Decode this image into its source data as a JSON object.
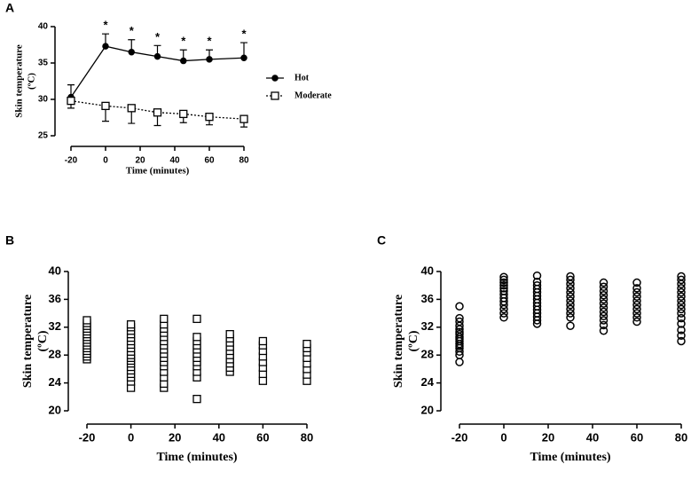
{
  "chart_data": [
    {
      "type": "line",
      "panel": "A",
      "xlabel": "Time (minutes)",
      "ylabel": [
        "Skin temperature",
        "(ºC)"
      ],
      "x": [
        -20,
        0,
        15,
        30,
        45,
        60,
        80
      ],
      "xlim": [
        -20,
        80
      ],
      "xticks": [
        -20,
        0,
        20,
        40,
        60,
        80
      ],
      "ylim": [
        25,
        40
      ],
      "yticks": [
        25,
        30,
        35,
        40
      ],
      "series": [
        {
          "name": "Hot",
          "color": "#000000",
          "marker": "circle-filled",
          "linestyle": "solid",
          "error_direction": "up",
          "values": [
            30.3,
            37.3,
            36.5,
            35.9,
            35.3,
            35.5,
            35.7
          ],
          "errors": [
            1.7,
            1.7,
            1.7,
            1.5,
            1.5,
            1.3,
            2.1
          ]
        },
        {
          "name": "Moderate",
          "color": "#000000",
          "marker": "square-open",
          "linestyle": "dotted",
          "error_direction": "down",
          "values": [
            29.8,
            29.1,
            28.8,
            28.2,
            28.0,
            27.6,
            27.3
          ],
          "errors": [
            1.0,
            2.1,
            2.1,
            1.8,
            1.2,
            1.1,
            1.1
          ]
        }
      ],
      "annotations": [
        {
          "x": 0,
          "text": "*"
        },
        {
          "x": 15,
          "text": "*"
        },
        {
          "x": 30,
          "text": "*"
        },
        {
          "x": 45,
          "text": "*"
        },
        {
          "x": 60,
          "text": "*"
        },
        {
          "x": 80,
          "text": "*"
        }
      ]
    },
    {
      "type": "scatter",
      "panel": "B",
      "marker": "square-open",
      "color": "#000000",
      "xlabel": "Time (minutes)",
      "ylabel": [
        "Skin temperature",
        "(ºC)"
      ],
      "xlim": [
        -20,
        80
      ],
      "xticks": [
        -20,
        0,
        20,
        40,
        60,
        80
      ],
      "ylim": [
        20,
        40
      ],
      "yticks": [
        20,
        24,
        28,
        32,
        36,
        40
      ],
      "x": [
        -20,
        -20,
        -20,
        -20,
        -20,
        -20,
        -20,
        -20,
        -20,
        -20,
        -20,
        -20,
        -20,
        -20,
        -20,
        0,
        0,
        0,
        0,
        0,
        0,
        0,
        0,
        0,
        0,
        0,
        0,
        0,
        0,
        0,
        0,
        0,
        0,
        0,
        15,
        15,
        15,
        15,
        15,
        15,
        15,
        15,
        15,
        15,
        15,
        15,
        15,
        15,
        15,
        15,
        30,
        30,
        30,
        30,
        30,
        30,
        30,
        30,
        30,
        30,
        30,
        30,
        45,
        45,
        45,
        45,
        45,
        45,
        45,
        45,
        45,
        45,
        60,
        60,
        60,
        60,
        60,
        60,
        60,
        60,
        80,
        80,
        80,
        80,
        80,
        80,
        80,
        80
      ],
      "values": [
        27.4,
        27.8,
        28.2,
        28.6,
        29,
        29.4,
        29.8,
        30.2,
        30.6,
        31,
        31.4,
        31.8,
        32.2,
        32.6,
        33.0,
        23.3,
        24.2,
        24.8,
        25.3,
        25.8,
        26.3,
        26.8,
        27.2,
        27.6,
        28,
        28.5,
        29,
        29.5,
        30,
        30.5,
        31,
        31.5,
        32,
        32.4,
        23.3,
        23.9,
        24.8,
        25.6,
        26.4,
        27,
        27.6,
        28.2,
        28.8,
        29.4,
        30,
        30.6,
        31.2,
        31.8,
        32.4,
        33.2,
        21.7,
        24.8,
        25.6,
        26.4,
        27,
        27.6,
        28.2,
        28.8,
        29.4,
        30,
        30.6,
        33.2,
        25.6,
        26.2,
        26.8,
        27.4,
        28,
        28.6,
        29.2,
        29.8,
        30.4,
        31,
        24.3,
        25.3,
        26.2,
        27,
        27.8,
        28.6,
        29.4,
        30,
        24.3,
        25.2,
        26,
        26.8,
        27.6,
        28.4,
        29,
        29.6
      ]
    },
    {
      "type": "scatter",
      "panel": "C",
      "marker": "circle-open",
      "color": "#000000",
      "xlabel": "Time (minutes)",
      "ylabel": [
        "Skin temperature",
        "(ºC)"
      ],
      "xlim": [
        -20,
        80
      ],
      "xticks": [
        -20,
        0,
        20,
        40,
        60,
        80
      ],
      "ylim": [
        20,
        40
      ],
      "yticks": [
        20,
        24,
        28,
        32,
        36,
        40
      ],
      "x": [
        -20,
        -20,
        -20,
        -20,
        -20,
        -20,
        -20,
        -20,
        -20,
        -20,
        -20,
        -20,
        -20,
        -20,
        -20,
        -20,
        0,
        0,
        0,
        0,
        0,
        0,
        0,
        0,
        0,
        0,
        0,
        0,
        0,
        15,
        15,
        15,
        15,
        15,
        15,
        15,
        15,
        15,
        15,
        15,
        15,
        15,
        15,
        30,
        30,
        30,
        30,
        30,
        30,
        30,
        30,
        30,
        30,
        30,
        30,
        45,
        45,
        45,
        45,
        45,
        45,
        45,
        45,
        45,
        45,
        45,
        45,
        60,
        60,
        60,
        60,
        60,
        60,
        60,
        60,
        60,
        60,
        80,
        80,
        80,
        80,
        80,
        80,
        80,
        80,
        80,
        80,
        80,
        80,
        80,
        80,
        80
      ],
      "values": [
        27,
        28,
        28.5,
        29,
        29.3,
        29.6,
        30,
        30.3,
        30.6,
        31,
        31.3,
        31.7,
        32.2,
        32.8,
        33.3,
        35,
        33.4,
        34,
        34.6,
        35.2,
        35.7,
        36.2,
        36.7,
        37.2,
        37.6,
        38,
        38.4,
        38.8,
        39.2,
        32.5,
        33,
        33.5,
        34,
        34.5,
        35,
        35.5,
        36,
        36.5,
        37,
        37.5,
        38,
        38.5,
        39.4,
        32.2,
        33.4,
        34,
        34.6,
        35.2,
        35.8,
        36.4,
        37,
        37.6,
        38.2,
        38.8,
        39.3,
        31.5,
        32.3,
        33,
        33.6,
        34.2,
        34.8,
        35.4,
        36,
        36.6,
        37.2,
        37.8,
        38.4,
        32.8,
        33.4,
        34,
        34.6,
        35.2,
        35.8,
        36.4,
        37,
        37.6,
        38.4,
        30,
        30.8,
        31.6,
        32.5,
        33.3,
        34,
        34.6,
        35.2,
        35.8,
        36.4,
        37,
        37.6,
        38.2,
        38.8,
        39.3
      ]
    }
  ]
}
